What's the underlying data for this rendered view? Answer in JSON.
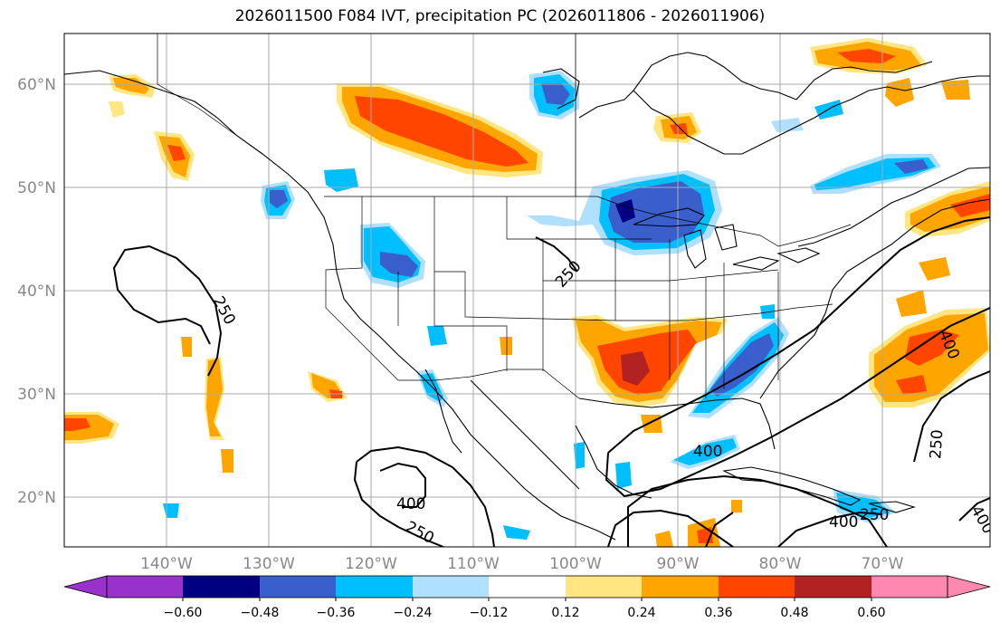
{
  "title": "2026011500 F084 IVT, precipitation PC (2026011806 - 2026011906)",
  "axes": {
    "lat_labels": [
      "60°N",
      "50°N",
      "40°N",
      "30°N",
      "20°N"
    ],
    "lon_labels": [
      "140°W",
      "130°W",
      "120°W",
      "110°W",
      "100°W",
      "90°W",
      "80°W",
      "70°W"
    ]
  },
  "ivt_contour_labels": [
    "250",
    "250",
    "400",
    "400",
    "250",
    "400",
    "250",
    "400",
    "250",
    "400"
  ],
  "colorbar": {
    "ticks": [
      "−0.60",
      "−0.48",
      "−0.36",
      "−0.24",
      "−0.12",
      "0.12",
      "0.24",
      "0.36",
      "0.48",
      "0.60"
    ],
    "colors": [
      "#9932cc",
      "#000080",
      "#3a5fcd",
      "#00bfff",
      "#b0e0ff",
      "#ffffff",
      "#ffe680",
      "#ffa500",
      "#ff4500",
      "#b22222",
      "#ff88b0"
    ]
  },
  "palette": {
    "neg_strong": "#000080",
    "neg_mid": "#3a5fcd",
    "neg_light": "#00bfff",
    "neg_faint": "#b0e0ff",
    "pos_faint": "#ffe680",
    "pos_light": "#ffa500",
    "pos_mid": "#ff4500",
    "pos_strong": "#b22222",
    "grid": "#aaaaaa",
    "tick_label": "#888888"
  }
}
